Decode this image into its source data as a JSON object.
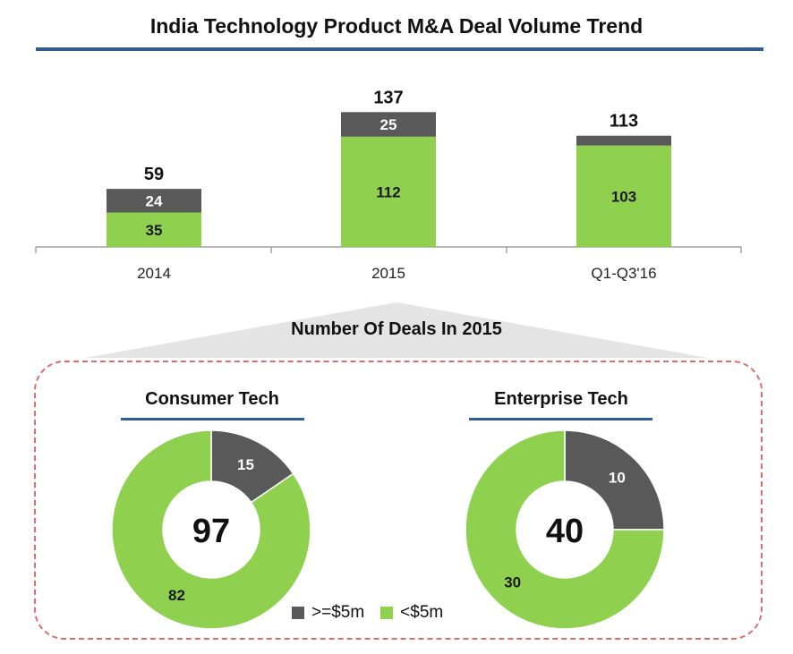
{
  "title": "India Technology Product M&A Deal Volume Trend",
  "colors": {
    "large": "#595959",
    "small": "#8fd14f",
    "accent": "#2e5d9c",
    "dash": "#e06b6b"
  },
  "chart_data": [
    {
      "type": "bar",
      "stacked": true,
      "title": "India Technology Product M&A Deal Volume Trend",
      "categories": [
        "2014",
        "2015",
        "Q1-Q3'16"
      ],
      "series": [
        {
          "name": "<$5m",
          "values": [
            35,
            112,
            103
          ],
          "labels": [
            "35",
            "112",
            "103"
          ]
        },
        {
          "name": ">=$5m",
          "values": [
            24,
            25,
            10
          ],
          "labels": [
            "24",
            "25",
            ""
          ]
        }
      ],
      "totals": [
        "59",
        "137",
        "113"
      ],
      "ylim": [
        0,
        160
      ],
      "grid": false
    },
    {
      "type": "pie",
      "donut": true,
      "title": "Consumer Tech",
      "center_label": "97",
      "slices": [
        {
          "name": ">=$5m",
          "value": 15,
          "label": "15"
        },
        {
          "name": "<$5m",
          "value": 82,
          "label": "82"
        }
      ]
    },
    {
      "type": "pie",
      "donut": true,
      "title": "Enterprise Tech",
      "center_label": "40",
      "slices": [
        {
          "name": ">=$5m",
          "value": 10,
          "label": "10"
        },
        {
          "name": "<$5m",
          "value": 30,
          "label": "30"
        }
      ]
    }
  ],
  "section_title": "Number Of Deals In 2015",
  "legend": [
    {
      "label": ">=$5m",
      "color": "#595959"
    },
    {
      "label": "<$5m",
      "color": "#8fd14f"
    }
  ]
}
